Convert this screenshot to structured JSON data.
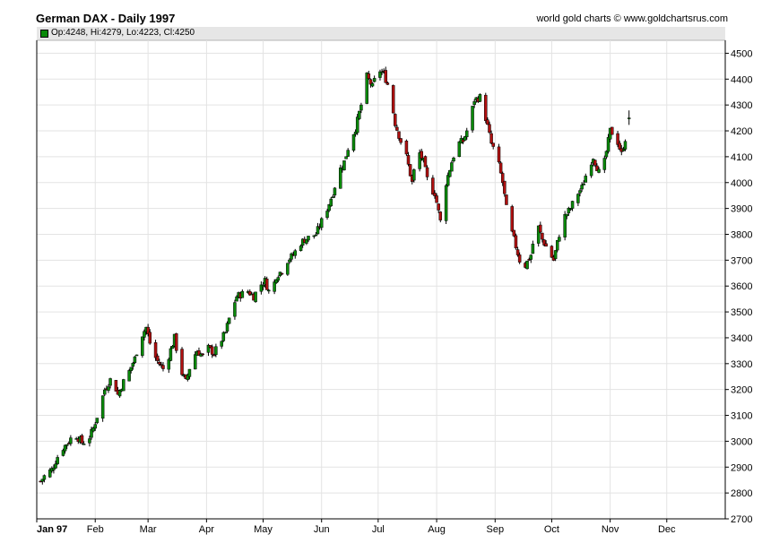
{
  "header": {
    "title": "German DAX - Daily 1997",
    "credit": "world gold charts © www.goldchartsrus.com",
    "ohlc_label": "Op:4248, Hi:4279, Lo:4223, Cl:4250"
  },
  "colors": {
    "up": "#0a8a0a",
    "down": "#b01010",
    "wick": "#000000",
    "grid": "#e3e3e3",
    "axis": "#000000"
  },
  "chart_data": {
    "type": "candlestick",
    "title": "German DAX - Daily 1997",
    "ylim": [
      2700,
      4550
    ],
    "y_ticks": [
      2700,
      2800,
      2900,
      3000,
      3100,
      3200,
      3300,
      3400,
      3500,
      3600,
      3700,
      3800,
      3900,
      4000,
      4100,
      4200,
      4300,
      4400,
      4500
    ],
    "x_range_days": [
      0,
      365
    ],
    "month_ticks": [
      {
        "label": "Jan 97",
        "day": 0
      },
      {
        "label": "Feb",
        "day": 31
      },
      {
        "label": "Mar",
        "day": 59
      },
      {
        "label": "Apr",
        "day": 90
      },
      {
        "label": "May",
        "day": 120
      },
      {
        "label": "Jun",
        "day": 151
      },
      {
        "label": "Jul",
        "day": 181
      },
      {
        "label": "Aug",
        "day": 212
      },
      {
        "label": "Sep",
        "day": 243
      },
      {
        "label": "Oct",
        "day": 273
      },
      {
        "label": "Nov",
        "day": 304
      },
      {
        "label": "Dec",
        "day": 334
      }
    ],
    "grid": true,
    "last_bar": {
      "open": 4248,
      "high": 4279,
      "low": 4223,
      "close": 4250
    },
    "close_path": [
      [
        2,
        2845
      ],
      [
        5,
        2875
      ],
      [
        8,
        2890
      ],
      [
        11,
        2940
      ],
      [
        14,
        2975
      ],
      [
        17,
        3000
      ],
      [
        20,
        3030
      ],
      [
        24,
        2995
      ],
      [
        27,
        3000
      ],
      [
        30,
        3050
      ],
      [
        33,
        3120
      ],
      [
        36,
        3200
      ],
      [
        40,
        3250
      ],
      [
        43,
        3180
      ],
      [
        46,
        3230
      ],
      [
        49,
        3270
      ],
      [
        52,
        3320
      ],
      [
        55,
        3400
      ],
      [
        58,
        3440
      ],
      [
        61,
        3350
      ],
      [
        64,
        3310
      ],
      [
        67,
        3280
      ],
      [
        70,
        3330
      ],
      [
        73,
        3400
      ],
      [
        76,
        3280
      ],
      [
        79,
        3230
      ],
      [
        82,
        3310
      ],
      [
        85,
        3350
      ],
      [
        88,
        3330
      ],
      [
        91,
        3360
      ],
      [
        94,
        3340
      ],
      [
        97,
        3380
      ],
      [
        100,
        3420
      ],
      [
        103,
        3500
      ],
      [
        106,
        3560
      ],
      [
        109,
        3570
      ],
      [
        112,
        3580
      ],
      [
        115,
        3560
      ],
      [
        118,
        3600
      ],
      [
        121,
        3620
      ],
      [
        124,
        3560
      ],
      [
        127,
        3640
      ],
      [
        130,
        3660
      ],
      [
        133,
        3700
      ],
      [
        136,
        3720
      ],
      [
        139,
        3760
      ],
      [
        142,
        3780
      ],
      [
        145,
        3790
      ],
      [
        148,
        3800
      ],
      [
        151,
        3850
      ],
      [
        154,
        3900
      ],
      [
        157,
        3960
      ],
      [
        160,
        4040
      ],
      [
        163,
        4080
      ],
      [
        166,
        4160
      ],
      [
        169,
        4210
      ],
      [
        172,
        4300
      ],
      [
        175,
        4410
      ],
      [
        178,
        4370
      ],
      [
        181,
        4440
      ],
      [
        184,
        4420
      ],
      [
        187,
        4360
      ],
      [
        190,
        4230
      ],
      [
        193,
        4160
      ],
      [
        196,
        4100
      ],
      [
        199,
        4000
      ],
      [
        202,
        4130
      ],
      [
        205,
        4080
      ],
      [
        208,
        3980
      ],
      [
        211,
        3960
      ],
      [
        214,
        3850
      ],
      [
        217,
        4000
      ],
      [
        220,
        4080
      ],
      [
        223,
        4150
      ],
      [
        226,
        4160
      ],
      [
        229,
        4220
      ],
      [
        232,
        4320
      ],
      [
        235,
        4330
      ],
      [
        238,
        4250
      ],
      [
        241,
        4150
      ],
      [
        244,
        4100
      ],
      [
        247,
        4000
      ],
      [
        250,
        3850
      ],
      [
        253,
        3780
      ],
      [
        256,
        3700
      ],
      [
        259,
        3680
      ],
      [
        262,
        3720
      ],
      [
        265,
        3850
      ],
      [
        268,
        3780
      ],
      [
        271,
        3740
      ],
      [
        274,
        3700
      ],
      [
        277,
        3800
      ],
      [
        280,
        3870
      ],
      [
        283,
        3900
      ],
      [
        286,
        3950
      ],
      [
        289,
        3980
      ],
      [
        292,
        4050
      ],
      [
        295,
        4100
      ],
      [
        298,
        4040
      ],
      [
        301,
        4080
      ],
      [
        304,
        4200
      ],
      [
        307,
        4180
      ],
      [
        310,
        4110
      ],
      [
        313,
        4200
      ]
    ]
  }
}
